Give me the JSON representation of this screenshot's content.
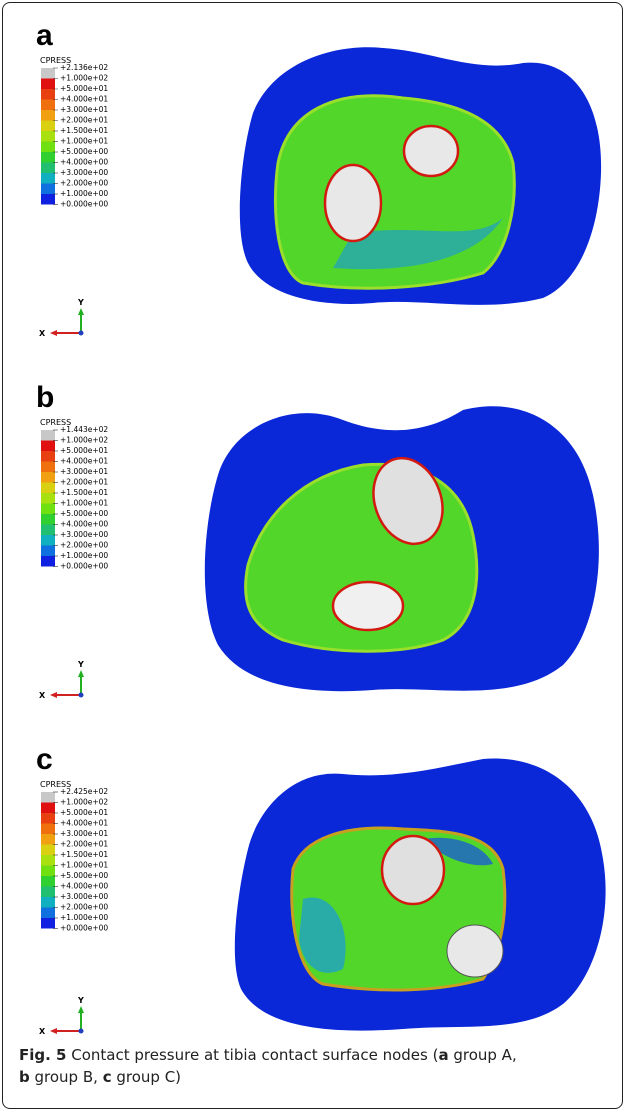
{
  "panels": [
    {
      "label": "a",
      "legend_title": "CPRESS",
      "legend_labels": [
        "+2.136e+02",
        "+1.000e+02",
        "+5.000e+01",
        "+4.000e+01",
        "+3.000e+01",
        "+2.000e+01",
        "+1.500e+01",
        "+1.000e+01",
        "+5.000e+00",
        "+4.000e+00",
        "+3.000e+00",
        "+2.000e+00",
        "+1.000e+00",
        "+0.000e+00"
      ],
      "axis_x": "X",
      "axis_y": "Y"
    },
    {
      "label": "b",
      "legend_title": "CPRESS",
      "legend_labels": [
        "+1.443e+02",
        "+1.000e+02",
        "+5.000e+01",
        "+4.000e+01",
        "+3.000e+01",
        "+2.000e+01",
        "+1.500e+01",
        "+1.000e+01",
        "+5.000e+00",
        "+4.000e+00",
        "+3.000e+00",
        "+2.000e+00",
        "+1.000e+00",
        "+0.000e+00"
      ],
      "axis_x": "X",
      "axis_y": "Y"
    },
    {
      "label": "c",
      "legend_title": "CPRESS",
      "legend_labels": [
        "+2.425e+02",
        "+1.000e+02",
        "+5.000e+01",
        "+4.000e+01",
        "+3.000e+01",
        "+2.000e+01",
        "+1.500e+01",
        "+1.000e+01",
        "+5.000e+00",
        "+4.000e+00",
        "+3.000e+00",
        "+2.000e+00",
        "+1.000e+00",
        "+0.000e+00"
      ],
      "axis_x": "X",
      "axis_y": "Y"
    }
  ],
  "caption": {
    "figure": "Fig. 5",
    "text_1": " Contact pressure at tibia contact surface nodes (",
    "a": "a",
    "text_2": " group A,",
    "b": "b",
    "text_3": " group B, ",
    "c": "c",
    "text_4": " group C)"
  }
}
